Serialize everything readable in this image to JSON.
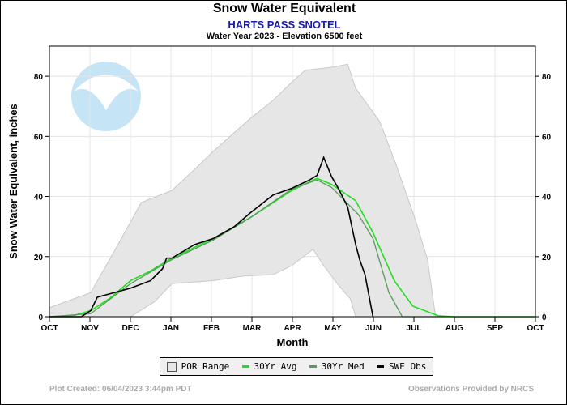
{
  "chart_data": {
    "type": "line",
    "title": "Snow Water Equivalent",
    "subtitle": "HARTS PASS SNOTEL",
    "subtitle2": "Water Year 2023 -  Elevation 6500 feet",
    "xlabel": "Month",
    "ylabel": "Snow Water Equivalent, inches",
    "x_range": [
      "2022-10-01",
      "2023-10-01"
    ],
    "x_ticks": [
      "OCT",
      "NOV",
      "DEC",
      "JAN",
      "FEB",
      "MAR",
      "APR",
      "MAY",
      "JUN",
      "JUL",
      "AUG",
      "SEP",
      "OCT"
    ],
    "ylim": [
      0,
      90
    ],
    "y_ticks": [
      0,
      20,
      40,
      60,
      80
    ],
    "grid": true,
    "legend_placement": "bottom",
    "colors": {
      "por": "#e6e6e6",
      "avg": "#22dd22",
      "med": "#5a9a5a",
      "obs": "#000000"
    },
    "por_range": {
      "name": "POR Range",
      "upper": [
        [
          "2022-10-01",
          3
        ],
        [
          "2022-11-01",
          8
        ],
        [
          "2022-11-19",
          22
        ],
        [
          "2022-12-09",
          38
        ],
        [
          "2023-01-01",
          42
        ],
        [
          "2023-01-18",
          49
        ],
        [
          "2023-02-01",
          55
        ],
        [
          "2023-03-01",
          66
        ],
        [
          "2023-03-18",
          72
        ],
        [
          "2023-04-01",
          78
        ],
        [
          "2023-04-11",
          82
        ],
        [
          "2023-05-01",
          83
        ],
        [
          "2023-05-13",
          84
        ],
        [
          "2023-05-19",
          76
        ],
        [
          "2023-06-06",
          65
        ],
        [
          "2023-06-18",
          51
        ],
        [
          "2023-07-03",
          32
        ],
        [
          "2023-07-12",
          19
        ],
        [
          "2023-07-18",
          0
        ]
      ],
      "lower": [
        [
          "2022-10-01",
          0
        ],
        [
          "2022-12-01",
          0
        ],
        [
          "2022-12-19",
          5
        ],
        [
          "2023-01-01",
          11
        ],
        [
          "2023-02-01",
          12
        ],
        [
          "2023-02-23",
          13.5
        ],
        [
          "2023-03-18",
          14
        ],
        [
          "2023-04-01",
          17
        ],
        [
          "2023-04-17",
          22.4
        ],
        [
          "2023-04-25",
          17
        ],
        [
          "2023-05-07",
          10
        ],
        [
          "2023-05-15",
          6
        ],
        [
          "2023-05-19",
          0
        ]
      ]
    },
    "series": [
      {
        "name": "30Yr Avg",
        "points": [
          [
            "2022-10-01",
            0
          ],
          [
            "2022-10-20",
            0.5
          ],
          [
            "2022-11-01",
            2
          ],
          [
            "2022-11-15",
            6
          ],
          [
            "2022-12-01",
            12
          ],
          [
            "2022-12-15",
            15
          ],
          [
            "2023-01-01",
            19.5
          ],
          [
            "2023-02-01",
            26
          ],
          [
            "2023-03-01",
            33
          ],
          [
            "2023-04-01",
            42
          ],
          [
            "2023-04-20",
            46
          ],
          [
            "2023-05-01",
            44
          ],
          [
            "2023-05-19",
            38.6
          ],
          [
            "2023-06-01",
            28
          ],
          [
            "2023-06-17",
            12
          ],
          [
            "2023-07-01",
            3.5
          ],
          [
            "2023-07-20",
            0.3
          ],
          [
            "2023-08-01",
            0
          ],
          [
            "2023-10-01",
            0
          ]
        ]
      },
      {
        "name": "30Yr Med",
        "points": [
          [
            "2022-10-01",
            0
          ],
          [
            "2022-11-01",
            1
          ],
          [
            "2022-12-01",
            11
          ],
          [
            "2023-01-01",
            19
          ],
          [
            "2023-02-01",
            25.5
          ],
          [
            "2023-03-01",
            33
          ],
          [
            "2023-04-01",
            42.5
          ],
          [
            "2023-04-20",
            45.5
          ],
          [
            "2023-05-01",
            43
          ],
          [
            "2023-05-21",
            34
          ],
          [
            "2023-06-01",
            26
          ],
          [
            "2023-06-13",
            8
          ],
          [
            "2023-06-23",
            0
          ],
          [
            "2023-10-01",
            0
          ]
        ]
      },
      {
        "name": "SWE Obs",
        "points": [
          [
            "2022-10-01",
            0
          ],
          [
            "2022-10-25",
            0
          ],
          [
            "2022-11-01",
            2
          ],
          [
            "2022-11-06",
            6.5
          ],
          [
            "2022-12-01",
            9.5
          ],
          [
            "2022-12-16",
            12
          ],
          [
            "2022-12-25",
            16
          ],
          [
            "2022-12-28",
            19.5
          ],
          [
            "2023-01-01",
            19.5
          ],
          [
            "2023-01-18",
            24
          ],
          [
            "2023-02-01",
            26
          ],
          [
            "2023-02-17",
            30
          ],
          [
            "2023-03-01",
            34.6
          ],
          [
            "2023-03-18",
            40.5
          ],
          [
            "2023-04-01",
            42.7
          ],
          [
            "2023-04-14",
            45.4
          ],
          [
            "2023-04-20",
            47
          ],
          [
            "2023-04-25",
            53
          ],
          [
            "2023-05-01",
            46.5
          ],
          [
            "2023-05-06",
            42.7
          ],
          [
            "2023-05-13",
            36.5
          ],
          [
            "2023-05-19",
            24
          ],
          [
            "2023-05-22",
            19
          ],
          [
            "2023-05-26",
            14
          ],
          [
            "2023-06-01",
            0
          ]
        ]
      }
    ]
  },
  "legend": {
    "por": "POR Range",
    "avg": "30Yr Avg",
    "med": "30Yr Med",
    "obs": "SWE Obs"
  },
  "logo": "NOAA",
  "footer": {
    "left": "Plot Created: 06/04/2023 3:44pm PDT",
    "right": "Observations Provided by NRCS"
  }
}
